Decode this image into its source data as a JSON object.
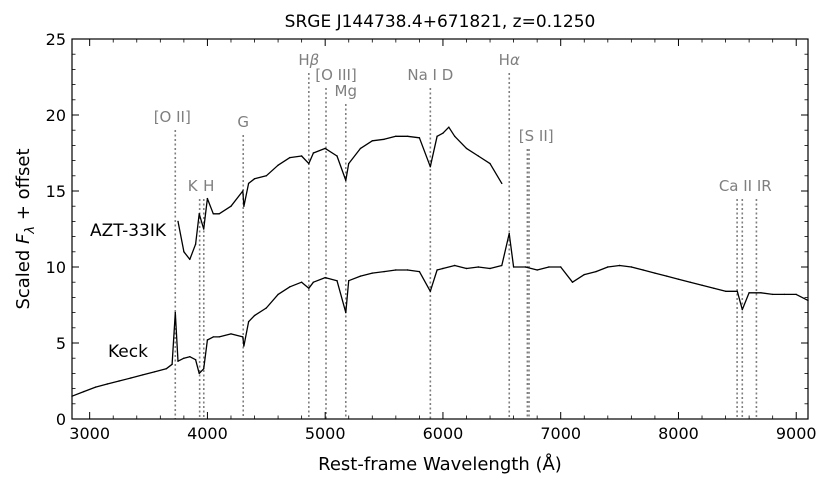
{
  "chart_data": {
    "type": "line",
    "title": "SRGE J144738.4+671821, z=0.1250",
    "xlabel": "Rest-frame Wavelength (Å)",
    "ylabel_parts": {
      "pre": "Scaled ",
      "F": "F",
      "sub": "λ",
      "post": " + offset"
    },
    "xlim": [
      2850,
      9100
    ],
    "ylim": [
      0,
      25
    ],
    "xticks": [
      3000,
      4000,
      5000,
      6000,
      7000,
      8000,
      9000
    ],
    "yticks": [
      0,
      5,
      10,
      15,
      20,
      25
    ],
    "grid": false,
    "series": [
      {
        "name": "Keck",
        "color": "#000000",
        "x": [
          2850,
          2950,
          3050,
          3150,
          3250,
          3350,
          3450,
          3550,
          3650,
          3700,
          3727,
          3750,
          3800,
          3850,
          3900,
          3930,
          3968,
          4000,
          4050,
          4100,
          4200,
          4300,
          4310,
          4350,
          4400,
          4500,
          4600,
          4700,
          4800,
          4861,
          4900,
          5000,
          5100,
          5175,
          5200,
          5300,
          5400,
          5500,
          5600,
          5700,
          5800,
          5893,
          5950,
          6000,
          6100,
          6200,
          6300,
          6400,
          6500,
          6563,
          6600,
          6700,
          6800,
          6900,
          7000,
          7100,
          7200,
          7300,
          7400,
          7500,
          7600,
          7700,
          7800,
          7900,
          8000,
          8100,
          8200,
          8300,
          8400,
          8500,
          8542,
          8600,
          8700,
          8800,
          8900,
          9000,
          9100
        ],
        "y": [
          1.5,
          1.8,
          2.1,
          2.3,
          2.5,
          2.7,
          2.9,
          3.1,
          3.3,
          3.6,
          7.0,
          3.8,
          4.0,
          4.1,
          3.9,
          3.0,
          3.3,
          5.2,
          5.4,
          5.4,
          5.6,
          5.4,
          4.8,
          6.4,
          6.8,
          7.3,
          8.2,
          8.7,
          9.0,
          8.6,
          9.0,
          9.3,
          9.1,
          7.0,
          9.1,
          9.4,
          9.6,
          9.7,
          9.8,
          9.8,
          9.7,
          8.4,
          9.8,
          9.9,
          10.1,
          9.9,
          10.0,
          9.9,
          10.1,
          12.2,
          10.0,
          10.0,
          9.8,
          10.0,
          10.0,
          9.0,
          9.5,
          9.7,
          10.0,
          10.1,
          10.0,
          9.8,
          9.6,
          9.4,
          9.2,
          9.0,
          8.8,
          8.6,
          8.4,
          8.4,
          7.2,
          8.3,
          8.3,
          8.2,
          8.2,
          8.2,
          7.8
        ]
      },
      {
        "name": "AZT-33IK",
        "color": "#000000",
        "x": [
          3750,
          3800,
          3850,
          3900,
          3930,
          3968,
          4000,
          4050,
          4100,
          4200,
          4300,
          4310,
          4350,
          4400,
          4500,
          4600,
          4700,
          4800,
          4861,
          4900,
          5000,
          5100,
          5175,
          5200,
          5300,
          5400,
          5500,
          5600,
          5700,
          5800,
          5893,
          5950,
          6000,
          6050,
          6100,
          6200,
          6300,
          6400,
          6500
        ],
        "y": [
          13.0,
          11.0,
          10.5,
          11.5,
          13.5,
          12.5,
          14.5,
          13.5,
          13.5,
          14.0,
          15.0,
          14.0,
          15.5,
          15.8,
          16.0,
          16.7,
          17.2,
          17.3,
          16.8,
          17.5,
          17.8,
          17.3,
          15.7,
          16.8,
          17.8,
          18.3,
          18.4,
          18.6,
          18.6,
          18.5,
          16.6,
          18.6,
          18.8,
          19.2,
          18.6,
          17.8,
          17.3,
          16.8,
          15.5
        ]
      }
    ],
    "series_labels": {
      "keck": "Keck",
      "azt": "AZT-33IK"
    },
    "emission_lines": [
      {
        "label": "[O II]",
        "x": [
          3727
        ]
      },
      {
        "label": "K",
        "x": [
          3934
        ]
      },
      {
        "label": "H",
        "x": [
          3969
        ]
      },
      {
        "label": "G",
        "x": [
          4304
        ]
      },
      {
        "label_parts": [
          "H",
          "β"
        ],
        "x": [
          4861
        ]
      },
      {
        "label": "[O III]",
        "x": [
          5007
        ]
      },
      {
        "label": "Mg",
        "x": [
          5175
        ]
      },
      {
        "label": "Na I D",
        "x": [
          5893
        ]
      },
      {
        "label_parts": [
          "H",
          "α"
        ],
        "x": [
          6563
        ]
      },
      {
        "label": "[S II]",
        "x": [
          6717,
          6731
        ]
      },
      {
        "label": "Ca II IR",
        "x": [
          8498,
          8542,
          8662
        ]
      }
    ]
  }
}
